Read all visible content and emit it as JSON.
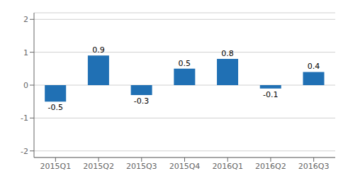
{
  "chart_data": {
    "type": "bar",
    "categories": [
      "2015Q1",
      "2015Q2",
      "2015Q3",
      "2015Q4",
      "2016Q1",
      "2016Q2",
      "2016Q3"
    ],
    "values": [
      -0.5,
      0.9,
      -0.3,
      0.5,
      0.8,
      -0.1,
      0.4
    ],
    "color": "#2070b4",
    "ylim": [
      -2.2,
      2.2
    ],
    "yticks": [
      -2,
      -1,
      0,
      1,
      2
    ],
    "grid": true,
    "data_labels": true
  }
}
